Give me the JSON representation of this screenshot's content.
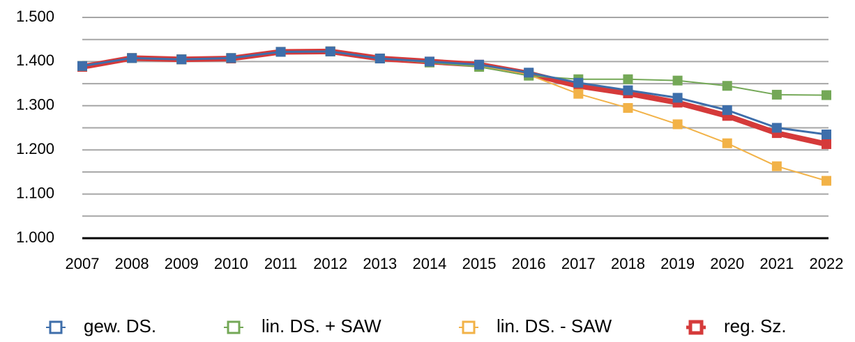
{
  "chart_data": {
    "type": "line",
    "categories": [
      "2007",
      "2008",
      "2009",
      "2010",
      "2011",
      "2012",
      "2013",
      "2014",
      "2015",
      "2016",
      "2017",
      "2018",
      "2019",
      "2020",
      "2021",
      "2022"
    ],
    "series": [
      {
        "name": "gew. DS.",
        "color": "#3e6eaa",
        "values": [
          1390,
          1408,
          1405,
          1408,
          1422,
          1423,
          1407,
          1400,
          1393,
          1375,
          1352,
          1335,
          1318,
          1290,
          1250,
          1235
        ]
      },
      {
        "name": "lin. DS. + SAW",
        "color": "#74a857",
        "values": [
          1390,
          1408,
          1405,
          1408,
          1422,
          1423,
          1407,
          1398,
          1388,
          1368,
          1360,
          1360,
          1357,
          1345,
          1325,
          1324
        ]
      },
      {
        "name": "lin. DS. - SAW",
        "color": "#f2b247",
        "values": [
          1390,
          1408,
          1405,
          1408,
          1422,
          1423,
          1407,
          1398,
          1390,
          1370,
          1327,
          1295,
          1258,
          1215,
          1163,
          1130
        ]
      },
      {
        "name": "reg. Sz.",
        "color": "#d53a3a",
        "values": [
          1388,
          1408,
          1405,
          1407,
          1422,
          1423,
          1407,
          1400,
          1393,
          1373,
          1345,
          1328,
          1307,
          1277,
          1238,
          1213
        ]
      }
    ],
    "ylim": [
      1000,
      1500
    ],
    "yticks": [
      {
        "value": 1000,
        "label": "1.000"
      },
      {
        "value": 1100,
        "label": "1.100"
      },
      {
        "value": 1200,
        "label": "1.200"
      },
      {
        "value": 1300,
        "label": "1.300"
      },
      {
        "value": 1400,
        "label": "1.400"
      },
      {
        "value": 1500,
        "label": "1.500"
      }
    ],
    "minor_yticks": [
      1050,
      1150,
      1250,
      1350,
      1450
    ],
    "grid": true,
    "legend": "bottom"
  }
}
